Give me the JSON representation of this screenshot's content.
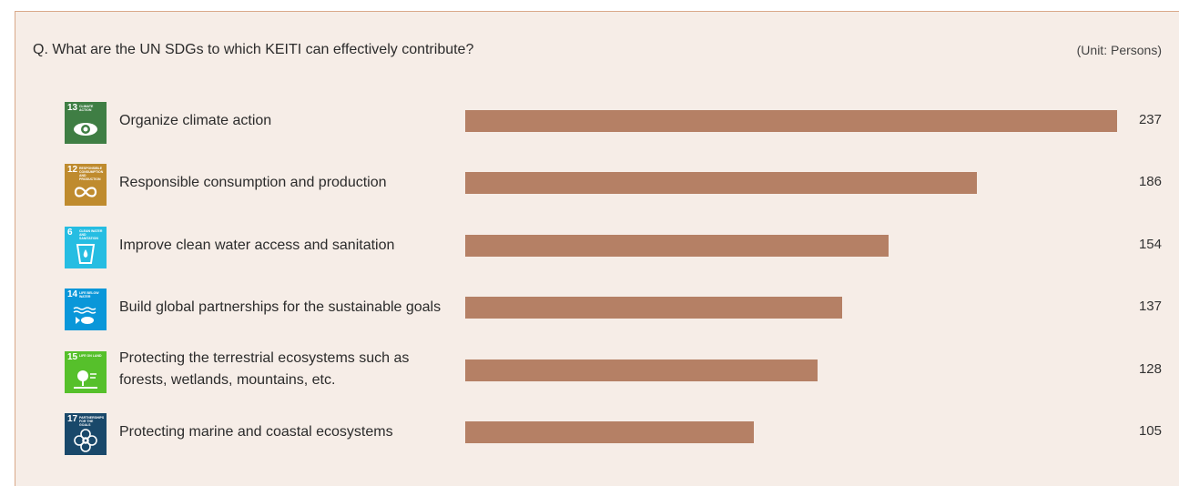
{
  "header": {
    "title": "Q. What are the UN SDGs to which KEITI can effectively contribute?",
    "unit": "(Unit: Persons)"
  },
  "colors": {
    "bar": "#b58065",
    "background": "#f6ede7",
    "border": "#d9a98a"
  },
  "icons": [
    {
      "number": "13",
      "caption": "CLIMATE ACTION",
      "color": "#3f7e44",
      "symbol": "eye-globe-icon"
    },
    {
      "number": "12",
      "caption": "RESPONSIBLE CONSUMPTION AND PRODUCTION",
      "color": "#bf8b2e",
      "symbol": "infinity-icon"
    },
    {
      "number": "6",
      "caption": "CLEAN WATER AND SANITATION",
      "color": "#26bde2",
      "symbol": "water-glass-icon"
    },
    {
      "number": "14",
      "caption": "LIFE BELOW WATER",
      "color": "#0a97d9",
      "symbol": "fish-icon"
    },
    {
      "number": "15",
      "caption": "LIFE ON LAND",
      "color": "#56c02b",
      "symbol": "tree-icon"
    },
    {
      "number": "17",
      "caption": "PARTNERSHIPS FOR THE GOALS",
      "color": "#19486a",
      "symbol": "flower-icon"
    }
  ],
  "chart_data": {
    "type": "bar",
    "orientation": "horizontal",
    "categories": [
      "Organize climate action",
      "Responsible consumption and production",
      "Improve clean water access and sanitation",
      "Build global partnerships for the sustainable goals",
      "Protecting the terrestrial ecosystems such as forests, wetlands, mountains, etc.",
      "Protecting marine and coastal ecosystems"
    ],
    "values": [
      237,
      186,
      154,
      137,
      128,
      105
    ],
    "title": "Q. What are the UN SDGs to which KEITI can effectively contribute?",
    "unit": "(Unit: Persons)",
    "xlim": [
      0,
      237
    ],
    "grid": false,
    "legend": "none"
  }
}
